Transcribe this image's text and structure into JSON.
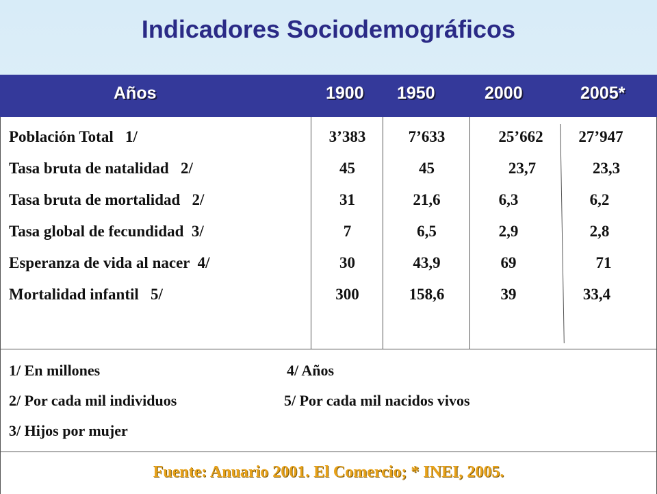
{
  "title": "Indicadores Sociodemográficos",
  "headers": [
    "Años",
    "1900",
    "1950",
    "2000",
    "2005*"
  ],
  "rows": [
    {
      "label": "Población Total   1/",
      "v1900": "3’383",
      "v1950": "7’633",
      "v2000": "25’662",
      "v2005": "27’947"
    },
    {
      "label": "Tasa bruta de natalidad   2/",
      "v1900": "45",
      "v1950": "45",
      "v2000": "23,7",
      "v2005": "23,3"
    },
    {
      "label": "Tasa bruta de mortalidad   2/",
      "v1900": "31",
      "v1950": "21,6",
      "v2000": "6,3",
      "v2005": "6,2"
    },
    {
      "label": "Tasa global de fecundidad  3/",
      "v1900": "7",
      "v1950": "6,5",
      "v2000": "2,9",
      "v2005": "2,8"
    },
    {
      "label": "Esperanza de vida al nacer  4/",
      "v1900": "30",
      "v1950": "43,9",
      "v2000": "69",
      "v2005": "71"
    },
    {
      "label": "Mortalidad infantil   5/",
      "v1900": "300",
      "v1950": "158,6",
      "v2000": "39",
      "v2005": "33,4"
    }
  ],
  "notes": {
    "n1": "1/ En millones",
    "n2": "2/ Por cada mil individuos",
    "n3": "3/ Hijos por mujer",
    "n4": "4/ Años",
    "n5": "5/ Por cada mil nacidos vivos"
  },
  "source": "Fuente: Anuario 2001. El Comercio; * INEI, 2005."
}
